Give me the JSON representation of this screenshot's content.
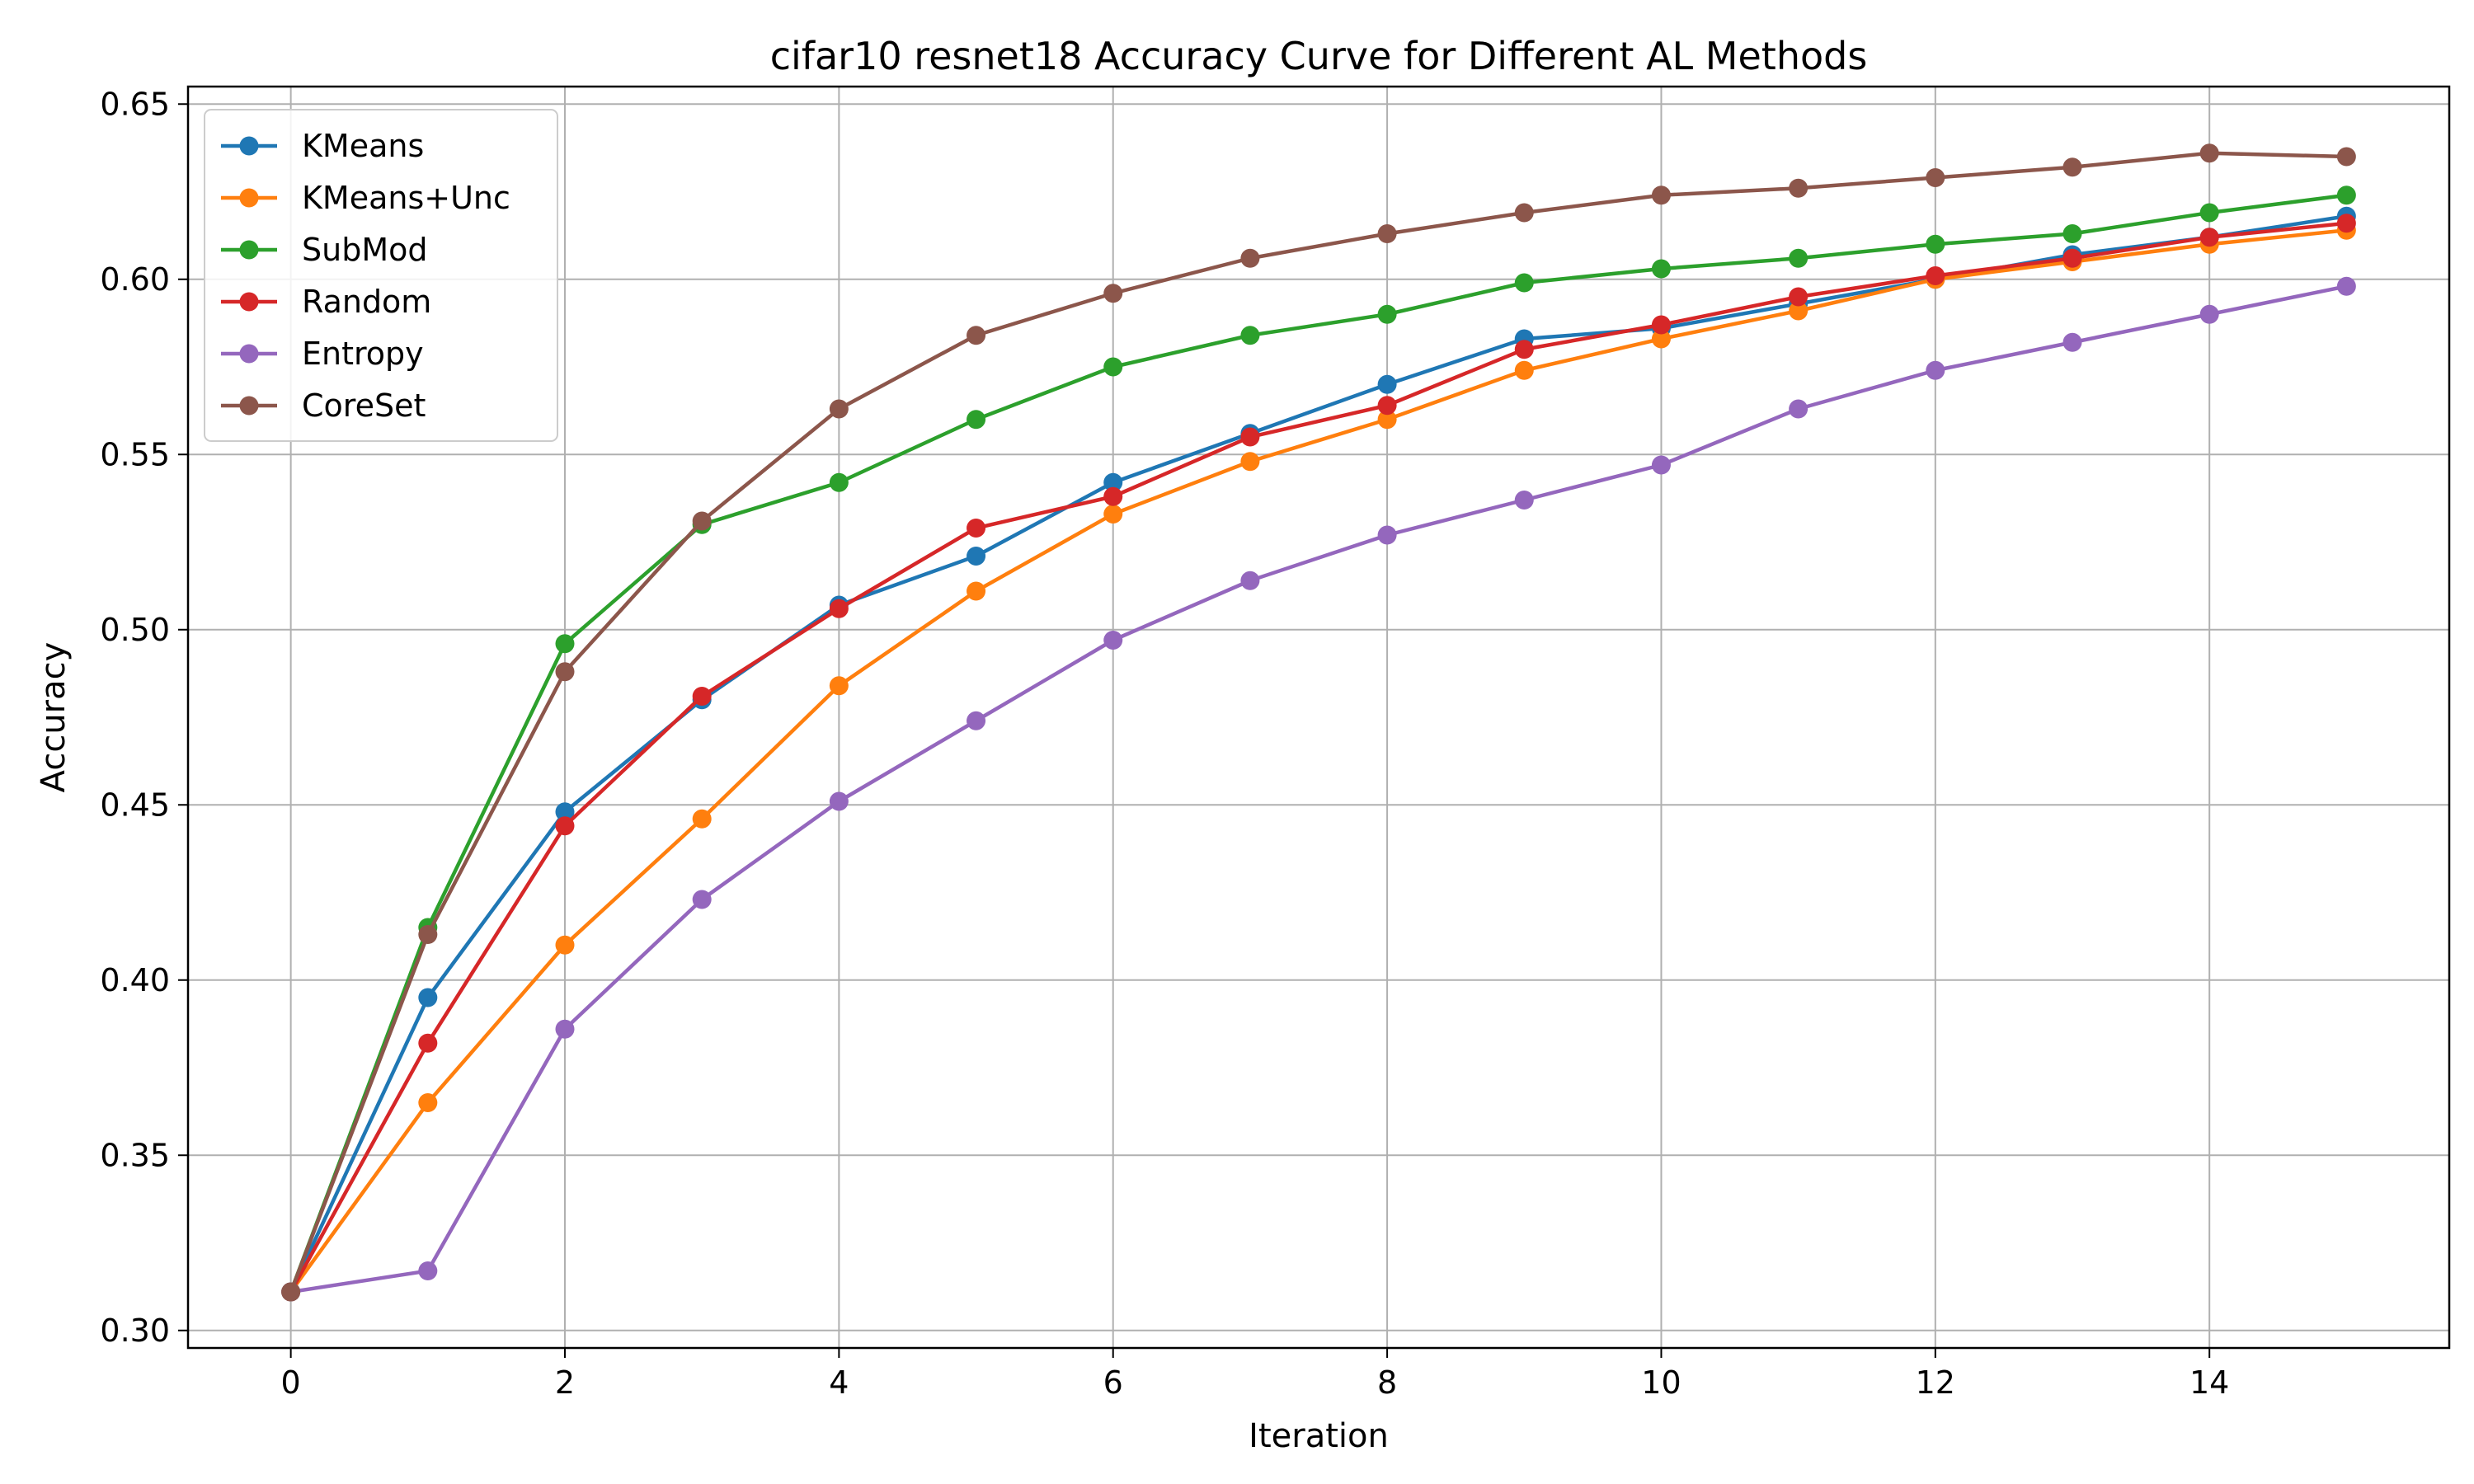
{
  "chart_data": {
    "type": "line",
    "title": "cifar10 resnet18 Accuracy Curve for Different AL Methods",
    "xlabel": "Iteration",
    "ylabel": "Accuracy",
    "xlim": [
      -0.75,
      15.75
    ],
    "ylim": [
      0.295,
      0.655
    ],
    "xticks": [
      0,
      2,
      4,
      6,
      8,
      10,
      12,
      14
    ],
    "xtick_labels": [
      "0",
      "2",
      "4",
      "6",
      "8",
      "10",
      "12",
      "14"
    ],
    "yticks": [
      0.3,
      0.35,
      0.4,
      0.45,
      0.5,
      0.55,
      0.6,
      0.65
    ],
    "ytick_labels": [
      "0.30",
      "0.35",
      "0.40",
      "0.45",
      "0.50",
      "0.55",
      "0.60",
      "0.65"
    ],
    "grid": true,
    "legend_position": "top-left",
    "x": [
      0,
      1,
      2,
      3,
      4,
      5,
      6,
      7,
      8,
      9,
      10,
      11,
      12,
      13,
      14,
      15
    ],
    "series": [
      {
        "name": "KMeans",
        "color": "#1f77b4",
        "values": [
          0.311,
          0.395,
          0.448,
          0.48,
          0.507,
          0.521,
          0.542,
          0.556,
          0.57,
          0.583,
          0.586,
          0.593,
          0.6,
          0.607,
          0.612,
          0.618
        ]
      },
      {
        "name": "KMeans+Unc",
        "color": "#ff7f0e",
        "values": [
          0.311,
          0.365,
          0.41,
          0.446,
          0.484,
          0.511,
          0.533,
          0.548,
          0.56,
          0.574,
          0.583,
          0.591,
          0.6,
          0.605,
          0.61,
          0.614
        ]
      },
      {
        "name": "SubMod",
        "color": "#2ca02c",
        "values": [
          0.311,
          0.415,
          0.496,
          0.53,
          0.542,
          0.56,
          0.575,
          0.584,
          0.59,
          0.599,
          0.603,
          0.606,
          0.61,
          0.613,
          0.619,
          0.624
        ]
      },
      {
        "name": "Random",
        "color": "#d62728",
        "values": [
          0.311,
          0.382,
          0.444,
          0.481,
          0.506,
          0.529,
          0.538,
          0.555,
          0.564,
          0.58,
          0.587,
          0.595,
          0.601,
          0.606,
          0.612,
          0.616
        ]
      },
      {
        "name": "Entropy",
        "color": "#9467bd",
        "values": [
          0.311,
          0.317,
          0.386,
          0.423,
          0.451,
          0.474,
          0.497,
          0.514,
          0.527,
          0.537,
          0.547,
          0.563,
          0.574,
          0.582,
          0.59,
          0.598
        ]
      },
      {
        "name": "CoreSet",
        "color": "#8c564b",
        "values": [
          0.311,
          0.413,
          0.488,
          0.531,
          0.563,
          0.584,
          0.596,
          0.606,
          0.613,
          0.619,
          0.624,
          0.626,
          0.629,
          0.632,
          0.636,
          0.635
        ]
      }
    ]
  }
}
